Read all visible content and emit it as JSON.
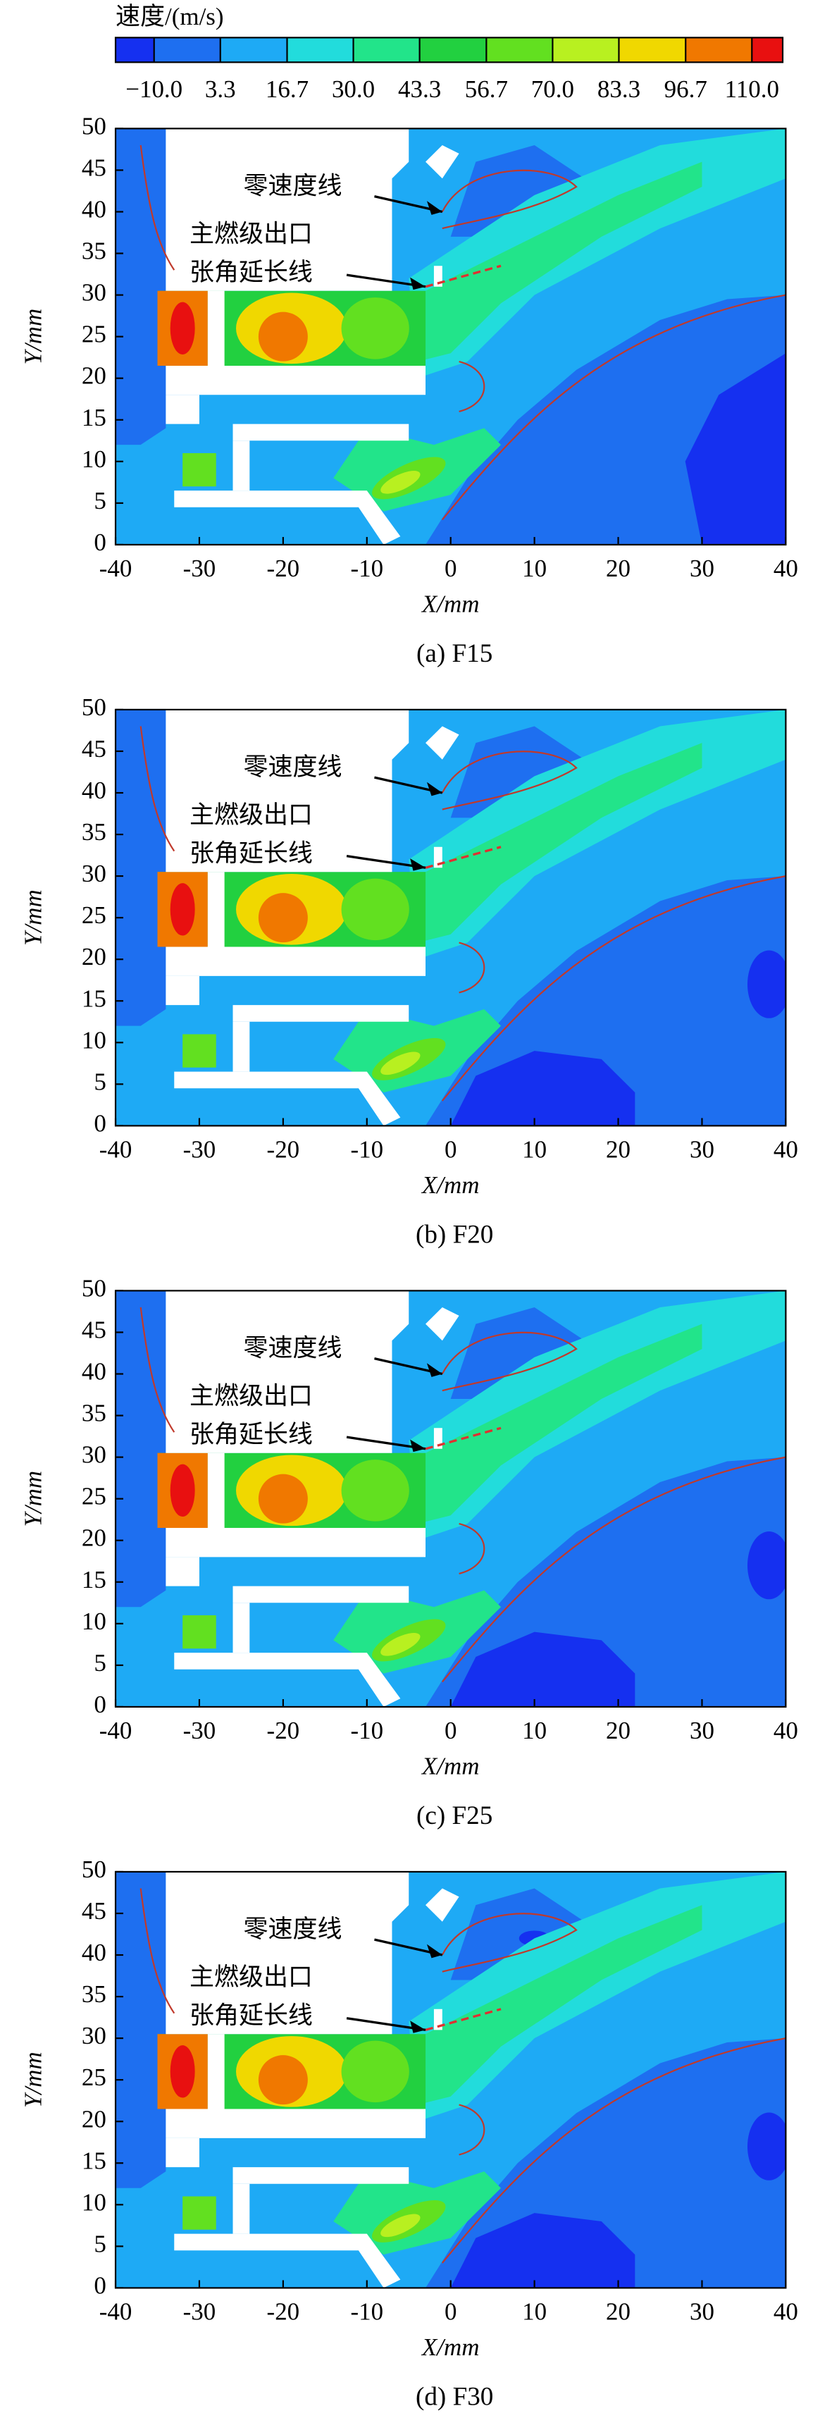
{
  "colorbar": {
    "title": "速度/(m/s)",
    "ticks": [
      {
        "value": -10,
        "label": "−10.0"
      },
      3.3,
      16.7,
      {
        "value": 30,
        "label": "30.0"
      },
      43.3,
      56.7,
      {
        "value": 70,
        "label": "70.0"
      },
      83.3,
      96.7,
      {
        "value": 110,
        "label": "110.0"
      }
    ],
    "colors": [
      "#1530f0",
      "#1e6ff0",
      "#1eaaf5",
      "#22dcdc",
      "#22e48a",
      "#22d040",
      "#62e020",
      "#b8f020",
      "#f0d800",
      "#f07800",
      "#e81010"
    ]
  },
  "chart_data": [
    {
      "type": "contour",
      "caption": "(a) F15",
      "xlabel": "X/mm",
      "ylabel": "Y/mm",
      "xlim": [
        -40,
        40
      ],
      "ylim": [
        0,
        50
      ],
      "xticks": [
        -40,
        -30,
        -20,
        -10,
        0,
        10,
        20,
        30,
        40
      ],
      "yticks": [
        0,
        5,
        10,
        15,
        20,
        25,
        30,
        35,
        40,
        45,
        50
      ],
      "annotations": [
        "零速度线",
        "主燃级出口",
        "张角延长线"
      ]
    },
    {
      "type": "contour",
      "caption": "(b) F20",
      "xlabel": "X/mm",
      "ylabel": "Y/mm",
      "xlim": [
        -40,
        40
      ],
      "ylim": [
        0,
        50
      ],
      "xticks": [
        -40,
        -30,
        -20,
        -10,
        0,
        10,
        20,
        30,
        40
      ],
      "yticks": [
        0,
        5,
        10,
        15,
        20,
        25,
        30,
        35,
        40,
        45,
        50
      ],
      "annotations": [
        "零速度线",
        "主燃级出口",
        "张角延长线"
      ]
    },
    {
      "type": "contour",
      "caption": "(c) F25",
      "xlabel": "X/mm",
      "ylabel": "Y/mm",
      "xlim": [
        -40,
        40
      ],
      "ylim": [
        0,
        50
      ],
      "xticks": [
        -40,
        -30,
        -20,
        -10,
        0,
        10,
        20,
        30,
        40
      ],
      "yticks": [
        0,
        5,
        10,
        15,
        20,
        25,
        30,
        35,
        40,
        45,
        50
      ],
      "annotations": [
        "零速度线",
        "主燃级出口",
        "张角延长线"
      ]
    },
    {
      "type": "contour",
      "caption": "(d) F30",
      "xlabel": "X/mm",
      "ylabel": "Y/mm",
      "xlim": [
        -40,
        40
      ],
      "ylim": [
        0,
        50
      ],
      "xticks": [
        -40,
        -30,
        -20,
        -10,
        0,
        10,
        20,
        30,
        40
      ],
      "yticks": [
        0,
        5,
        10,
        15,
        20,
        25,
        30,
        35,
        40,
        45,
        50
      ],
      "annotations": [
        "零速度线",
        "主燃级出口",
        "张角延长线"
      ]
    }
  ]
}
